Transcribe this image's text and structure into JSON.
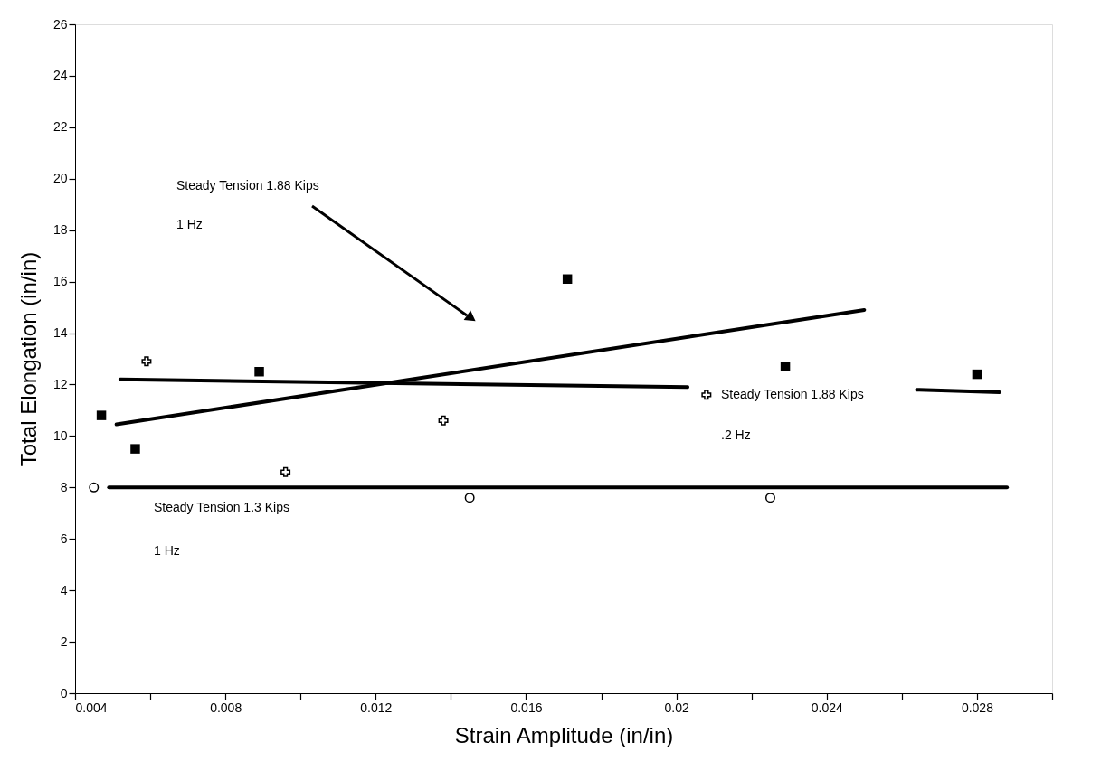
{
  "chart_data": {
    "type": "scatter",
    "xlabel": "Strain Amplitude (in/in)",
    "ylabel": "Total Elongation (in/in)",
    "xlim": [
      0.004,
      0.03
    ],
    "ylim": [
      0,
      26
    ],
    "xticks": [
      0.004,
      {
        "value": 0.006,
        "label": null
      },
      0.008,
      {
        "value": 0.01,
        "label": null
      },
      0.012,
      {
        "value": 0.014,
        "label": null
      },
      0.016,
      {
        "value": 0.018,
        "label": null
      },
      0.02,
      {
        "value": 0.022,
        "label": null
      },
      0.024,
      {
        "value": 0.026,
        "label": null
      },
      0.028,
      {
        "value": 0.03,
        "label": null
      }
    ],
    "yticks": [
      0,
      2,
      4,
      6,
      8,
      10,
      12,
      14,
      16,
      18,
      20,
      22,
      24,
      26
    ],
    "grid": false,
    "series": [
      {
        "marker": "square",
        "color": "#000000",
        "x": [
          0.0047,
          0.0056,
          0.0089,
          0.0171,
          0.0229,
          0.028
        ],
        "values": [
          10.8,
          9.5,
          12.5,
          16.1,
          12.7,
          12.4
        ]
      },
      {
        "marker": "cross",
        "color": "#000000",
        "x": [
          0.0059,
          0.0096,
          0.0138,
          0.0208
        ],
        "values": [
          12.9,
          8.6,
          10.6,
          11.6
        ]
      },
      {
        "marker": "circle",
        "color": "#000000",
        "x": [
          0.0045,
          0.0145,
          0.0225
        ],
        "values": [
          8.0,
          7.6,
          7.6
        ]
      },
      {
        "type": "line",
        "marker": "none",
        "color": "#000000",
        "x": [
          0.0051,
          0.025
        ],
        "values": [
          10.45,
          14.9
        ]
      },
      {
        "type": "line",
        "marker": "none",
        "color": "#000000",
        "x": [
          0.0052,
          0.0203,
          0.0234,
          0.0264,
          0.0286
        ],
        "values": [
          12.2,
          11.9,
          null,
          11.8,
          11.7
        ]
      },
      {
        "type": "line",
        "marker": "none",
        "color": "#000000",
        "x": [
          0.0049,
          0.0288
        ],
        "values": [
          8.0,
          8.0
        ]
      }
    ],
    "annotations": [
      "Steady Tension 1.88 Kips",
      "1 Hz",
      "Steady Tension 1.3 Kips",
      "1 Hz",
      "Steady Tension 1.88 Kips",
      ".2 Hz"
    ]
  }
}
